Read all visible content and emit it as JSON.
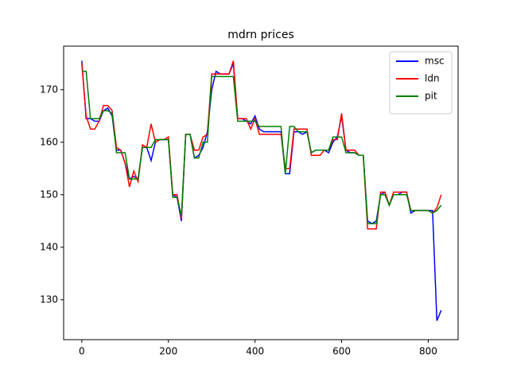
{
  "chart_data": {
    "type": "line",
    "title": "mdrn prices",
    "x": [
      0,
      10,
      20,
      30,
      40,
      50,
      60,
      70,
      80,
      90,
      100,
      110,
      120,
      130,
      140,
      150,
      160,
      170,
      180,
      190,
      200,
      210,
      220,
      230,
      240,
      250,
      260,
      270,
      280,
      290,
      300,
      310,
      320,
      330,
      340,
      350,
      360,
      370,
      380,
      390,
      400,
      410,
      420,
      430,
      440,
      450,
      460,
      470,
      480,
      490,
      500,
      510,
      520,
      530,
      540,
      550,
      560,
      570,
      580,
      590,
      600,
      610,
      620,
      630,
      640,
      650,
      660,
      670,
      680,
      690,
      700,
      710,
      720,
      730,
      740,
      750,
      760,
      770,
      780,
      790,
      800,
      810,
      820,
      830
    ],
    "series": [
      {
        "name": "msc",
        "color": "#0000ff",
        "values": [
          175.5,
          164.5,
          164.5,
          164,
          164,
          166,
          166.5,
          165,
          158.5,
          158.5,
          156,
          153,
          153.5,
          153,
          159,
          159,
          156.5,
          160,
          160.5,
          160.5,
          160.5,
          150,
          149.5,
          145,
          161.5,
          161.5,
          157,
          157.5,
          159,
          162,
          170,
          173.5,
          173,
          173,
          173,
          175,
          164.5,
          164.5,
          164,
          163.5,
          165,
          162.5,
          162,
          162,
          162,
          162,
          162,
          154,
          154,
          162,
          162,
          161.5,
          162,
          158,
          158.5,
          158.5,
          158.5,
          158,
          160,
          161,
          165,
          158.5,
          158,
          158,
          157.5,
          157.5,
          145,
          144.5,
          145,
          150,
          150.5,
          148,
          150,
          150,
          150.5,
          150.5,
          146.5,
          147,
          147,
          147,
          147,
          147,
          126,
          128
        ]
      },
      {
        "name": "ldn",
        "color": "#ff0000",
        "values": [
          175,
          165,
          162.5,
          162.5,
          164,
          167,
          167,
          166,
          159,
          158.5,
          156,
          151.5,
          154.5,
          152.5,
          159.5,
          159,
          163.5,
          160,
          160.5,
          160.5,
          161,
          150,
          150,
          145.5,
          161.5,
          161.5,
          158.5,
          158.5,
          161,
          161.5,
          173,
          173,
          173,
          173,
          173,
          175.5,
          164.5,
          164.5,
          164.5,
          162.5,
          164.5,
          161.5,
          161.5,
          161.5,
          161.5,
          161.5,
          161.5,
          155,
          155,
          162.5,
          162.5,
          162.5,
          162.5,
          157.5,
          157.5,
          157.5,
          158.5,
          158.5,
          160.5,
          160.5,
          165.5,
          158.5,
          158.5,
          158.5,
          157.5,
          157.5,
          143.5,
          143.5,
          143.5,
          150.5,
          150.5,
          148,
          150.5,
          150.5,
          150.5,
          150.5,
          147,
          147,
          147,
          147,
          147,
          146.5,
          147.5,
          150
        ]
      },
      {
        "name": "pit",
        "color": "#008000",
        "values": [
          173.5,
          173.5,
          164.5,
          164.5,
          164.5,
          166,
          166,
          165.5,
          158,
          158,
          158,
          153,
          153,
          153,
          159,
          159,
          159,
          160.5,
          160.5,
          160.5,
          160.5,
          149.5,
          149.5,
          146,
          161.5,
          161.5,
          157,
          157,
          160,
          160,
          172.5,
          172.5,
          172.5,
          172.5,
          172.5,
          172.5,
          164,
          164,
          164,
          164,
          164,
          163,
          163,
          163,
          163,
          163,
          163,
          154,
          163,
          163,
          162,
          162,
          162,
          158,
          158.5,
          158.5,
          158.5,
          158.5,
          161,
          161,
          161,
          158,
          158,
          158,
          157.5,
          157.5,
          144.5,
          144.5,
          144.5,
          150,
          150,
          148,
          150,
          150,
          150,
          150,
          147,
          147,
          147,
          147,
          147,
          146.5,
          147,
          148
        ]
      }
    ],
    "xlim": [
      -42,
      869
    ],
    "ylim": [
      122.4,
      178.3
    ],
    "xticks": [
      0,
      200,
      400,
      600,
      800
    ],
    "yticks": [
      130,
      140,
      150,
      160,
      170
    ],
    "legend": "upper right"
  }
}
